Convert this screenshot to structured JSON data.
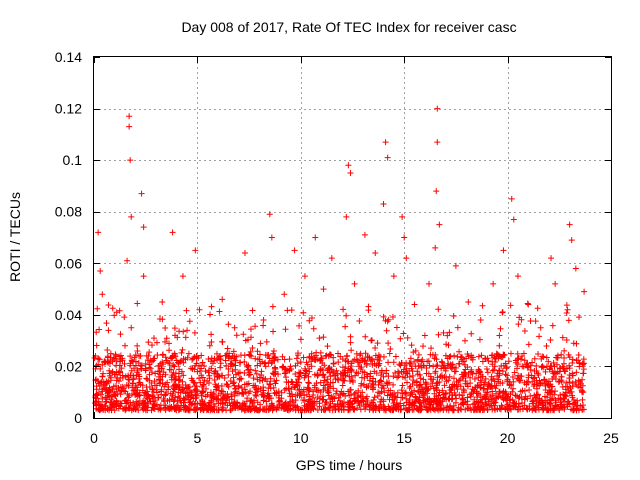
{
  "chart_data": {
    "type": "scatter",
    "title": "Day 008 of 2017, Rate Of TEC Index for receiver casc",
    "xlabel": "GPS time / hours",
    "ylabel": "ROTI / TECUs",
    "xlim": [
      0,
      25
    ],
    "ylim": [
      0,
      0.14
    ],
    "xticks": [
      0,
      5,
      10,
      15,
      20,
      25
    ],
    "xtick_labels": [
      "0",
      "5",
      "10",
      "15",
      "20",
      "25"
    ],
    "yticks": [
      0,
      0.02,
      0.04,
      0.06,
      0.08,
      0.1,
      0.12,
      0.14
    ],
    "ytick_labels": [
      "0",
      "0.02",
      "0.04",
      "0.06",
      "0.08",
      "0.1",
      "0.12",
      "0.14"
    ],
    "grid": true,
    "marker": "+",
    "color": "#ff0000",
    "series": [
      {
        "name": "ROTI",
        "x": [
          0.1,
          0.2,
          0.3,
          0.4,
          0.5,
          0.6,
          0.7,
          0.9,
          1.1,
          1.3,
          1.5,
          1.6,
          1.7,
          1.7,
          1.75,
          1.8,
          1.8,
          1.9,
          2.1,
          2.3,
          2.4,
          2.4,
          2.5,
          2.7,
          2.9,
          3.1,
          3.3,
          3.6,
          3.8,
          3.9,
          4.1,
          4.3,
          4.5,
          4.7,
          4.9,
          5.0,
          5.1,
          5.3,
          5.6,
          5.9,
          6.2,
          6.5,
          6.8,
          7.0,
          7.3,
          7.6,
          7.9,
          8.2,
          8.5,
          8.6,
          8.7,
          8.9,
          9.2,
          9.5,
          9.7,
          9.9,
          10.2,
          10.5,
          10.7,
          10.9,
          11.1,
          11.3,
          11.5,
          11.8,
          12.0,
          12.2,
          12.3,
          12.4,
          12.6,
          12.9,
          13.1,
          13.4,
          13.6,
          13.8,
          14.0,
          14.1,
          14.2,
          14.3,
          14.5,
          14.7,
          14.9,
          15.0,
          15.1,
          15.3,
          15.5,
          15.8,
          16.0,
          16.2,
          16.4,
          16.5,
          16.55,
          16.6,
          16.6,
          16.7,
          16.9,
          17.2,
          17.5,
          17.8,
          18.1,
          18.4,
          18.7,
          19.0,
          19.3,
          19.6,
          19.8,
          20.0,
          20.2,
          20.3,
          20.5,
          20.7,
          21.0,
          21.3,
          21.6,
          21.9,
          22.1,
          22.3,
          22.6,
          22.9,
          23.0,
          23.1,
          23.2,
          23.3,
          23.5,
          23.7
        ],
        "y": [
          0.015,
          0.072,
          0.057,
          0.048,
          0.022,
          0.011,
          0.034,
          0.018,
          0.041,
          0.012,
          0.028,
          0.061,
          0.113,
          0.117,
          0.1,
          0.078,
          0.035,
          0.015,
          0.026,
          0.087,
          0.055,
          0.074,
          0.021,
          0.012,
          0.031,
          0.018,
          0.045,
          0.012,
          0.072,
          0.025,
          0.016,
          0.055,
          0.034,
          0.01,
          0.065,
          0.018,
          0.042,
          0.013,
          0.028,
          0.011,
          0.046,
          0.019,
          0.035,
          0.012,
          0.064,
          0.024,
          0.015,
          0.038,
          0.079,
          0.07,
          0.026,
          0.017,
          0.048,
          0.02,
          0.065,
          0.016,
          0.055,
          0.022,
          0.07,
          0.031,
          0.05,
          0.013,
          0.062,
          0.025,
          0.017,
          0.078,
          0.098,
          0.095,
          0.052,
          0.019,
          0.071,
          0.03,
          0.064,
          0.014,
          0.083,
          0.107,
          0.101,
          0.025,
          0.055,
          0.018,
          0.078,
          0.07,
          0.062,
          0.021,
          0.044,
          0.013,
          0.032,
          0.052,
          0.02,
          0.066,
          0.088,
          0.12,
          0.107,
          0.075,
          0.033,
          0.016,
          0.059,
          0.022,
          0.045,
          0.011,
          0.038,
          0.019,
          0.052,
          0.028,
          0.065,
          0.015,
          0.085,
          0.077,
          0.055,
          0.024,
          0.044,
          0.013,
          0.035,
          0.02,
          0.062,
          0.052,
          0.016,
          0.042,
          0.075,
          0.069,
          0.029,
          0.058,
          0.014,
          0.049
        ]
      }
    ],
    "band": {
      "low": 0.003,
      "dense_high": 0.025,
      "sparse_high": 0.045
    }
  }
}
